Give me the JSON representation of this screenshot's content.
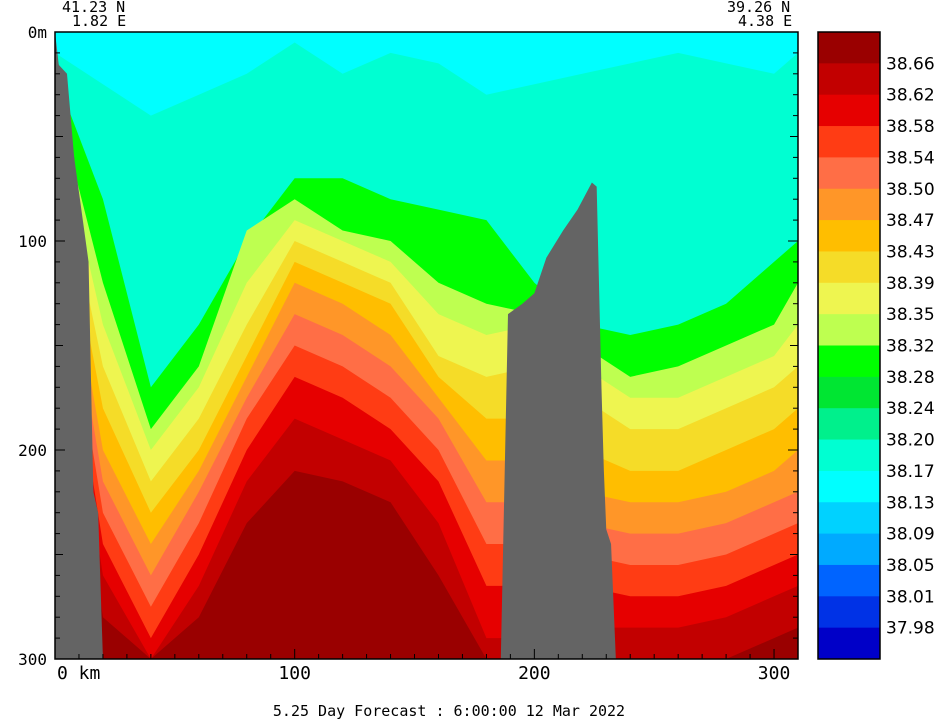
{
  "chart_data": {
    "type": "heatmap",
    "title": "5.25 Day Forecast :  6:00:00  12 Mar 2022",
    "start_point": {
      "lat": "41.23 N",
      "lon": "1.82 E"
    },
    "end_point": {
      "lat": "39.26 N",
      "lon": "4.38 E"
    },
    "x_axis": {
      "unit_label": "km",
      "range": [
        0,
        310
      ],
      "ticks": [
        0,
        100,
        200,
        300
      ],
      "tick_labels": [
        "0  km",
        "100",
        "200",
        "300"
      ]
    },
    "y_axis": {
      "range": [
        0,
        300
      ],
      "inverted": true,
      "ticks": [
        0,
        100,
        200,
        300
      ],
      "tick_labels": [
        "0m",
        "100",
        "200",
        "300"
      ]
    },
    "colorbar": {
      "levels": [
        38.66,
        38.62,
        38.58,
        38.54,
        38.5,
        38.47,
        38.43,
        38.39,
        38.35,
        38.32,
        38.28,
        38.24,
        38.2,
        38.17,
        38.13,
        38.09,
        38.05,
        38.01,
        37.98
      ],
      "level_labels": [
        "38.66",
        "38.62",
        "38.58",
        "38.54",
        "38.50",
        "38.47",
        "38.43",
        "38.39",
        "38.35",
        "38.32",
        "38.28",
        "38.24",
        "38.20",
        "38.17",
        "38.13",
        "38.09",
        "38.05",
        "38.01",
        "37.98"
      ],
      "colors": [
        "#9a0000",
        "#c20000",
        "#e60000",
        "#ff3c14",
        "#ff6e46",
        "#ff9628",
        "#ffbe00",
        "#f5dc28",
        "#eef550",
        "#beff50",
        "#00ff00",
        "#00e632",
        "#00f08c",
        "#00ffd2",
        "#00ffff",
        "#00d2ff",
        "#00aaff",
        "#0064ff",
        "#0032e6",
        "#0000c8"
      ]
    },
    "bathymetry": {
      "color": "#646464",
      "profile": [
        [
          0,
          300
        ],
        [
          1,
          15
        ],
        [
          5,
          20
        ],
        [
          8,
          60
        ],
        [
          14,
          110
        ],
        [
          16,
          220
        ],
        [
          18,
          230
        ],
        [
          20,
          300
        ],
        [
          186,
          300
        ],
        [
          186,
          300
        ],
        [
          189,
          135
        ],
        [
          195,
          130
        ],
        [
          200,
          125
        ],
        [
          205,
          108
        ],
        [
          212,
          95
        ],
        [
          218,
          85
        ],
        [
          224,
          72
        ],
        [
          226,
          74
        ],
        [
          228,
          170
        ],
        [
          229,
          210
        ],
        [
          230,
          238
        ],
        [
          232,
          245
        ],
        [
          234,
          300
        ]
      ]
    },
    "fields": {
      "top_band": [
        {
          "x": [
            0,
            20,
            40,
            60,
            80,
            100,
            120,
            140,
            160,
            180,
            200,
            220,
            240,
            260,
            280,
            300,
            310
          ],
          "isolines": {
            "38.17": [
              10,
              25,
              40,
              30,
              20,
              5,
              20,
              10,
              15,
              30,
              25,
              20,
              15,
              10,
              15,
              20,
              10
            ],
            "38.28": [
              20,
              80,
              170,
              140,
              100,
              70,
              70,
              80,
              85,
              90,
              120,
              140,
              145,
              140,
              130,
              110,
              100
            ],
            "38.32": [
              30,
              120,
              190,
              160,
              95,
              80,
              95,
              100,
              120,
              130,
              135,
              150,
              165,
              160,
              150,
              140,
              120
            ],
            "38.35": [
              40,
              140,
              200,
              170,
              120,
              90,
              100,
              110,
              135,
              145,
              140,
              160,
              175,
              175,
              165,
              155,
              140
            ],
            "38.39": [
              50,
              160,
              215,
              185,
              140,
              100,
              110,
              120,
              155,
              165,
              160,
              175,
              190,
              190,
              180,
              170,
              160
            ],
            "38.43": [
              60,
              180,
              230,
              200,
              155,
              110,
              120,
              130,
              165,
              185,
              185,
              200,
              210,
              210,
              200,
              190,
              180
            ],
            "38.47": [
              70,
              200,
              245,
              210,
              165,
              120,
              130,
              145,
              175,
              205,
              205,
              220,
              225,
              225,
              220,
              210,
              200
            ],
            "38.50": [
              80,
              215,
              260,
              220,
              175,
              135,
              145,
              160,
              185,
              225,
              225,
              235,
              240,
              240,
              235,
              225,
              220
            ],
            "38.54": [
              90,
              230,
              275,
              235,
              185,
              150,
              160,
              175,
              200,
              245,
              245,
              250,
              255,
              255,
              250,
              240,
              235
            ],
            "38.58": [
              100,
              245,
              290,
              250,
              200,
              165,
              175,
              190,
              215,
              265,
              265,
              265,
              270,
              270,
              265,
              255,
              250
            ],
            "38.62": [
              110,
              260,
              300,
              265,
              215,
              185,
              195,
              205,
              235,
              290,
              290,
              285,
              285,
              285,
              280,
              270,
              265
            ],
            "38.66": [
              120,
              280,
              300,
              280,
              235,
              210,
              215,
              225,
              260,
              300,
              300,
              300,
              300,
              300,
              300,
              290,
              285
            ]
          }
        }
      ]
    },
    "grid": false,
    "legend_placement": "right"
  }
}
